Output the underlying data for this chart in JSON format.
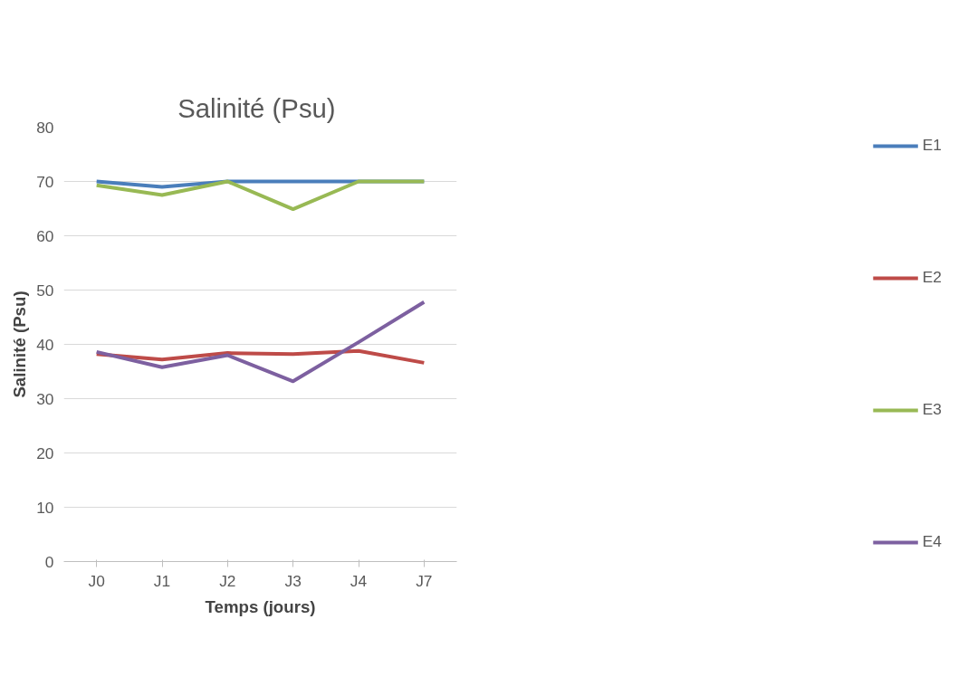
{
  "chart_data": {
    "type": "line",
    "title": "Salinité  (Psu)",
    "xlabel": "Temps (jours)",
    "ylabel": "Salinité (Psu)",
    "categories": [
      "J0",
      "J1",
      "J2",
      "J3",
      "J4",
      "J7"
    ],
    "series": [
      {
        "name": "E1",
        "color": "#4a7ebb",
        "values": [
          70,
          69,
          70,
          70,
          70,
          70
        ]
      },
      {
        "name": "E2",
        "color": "#be4b48",
        "values": [
          38.2,
          37.2,
          38.4,
          38.2,
          38.8,
          36.6
        ]
      },
      {
        "name": "E3",
        "color": "#98b954",
        "values": [
          69.3,
          67.5,
          70,
          64.9,
          70,
          70
        ]
      },
      {
        "name": "E4",
        "color": "#7d60a0",
        "values": [
          38.6,
          35.8,
          38,
          33.2,
          40.4,
          47.8
        ]
      }
    ],
    "ylim": [
      0,
      80
    ],
    "yticks": [
      0,
      10,
      20,
      30,
      40,
      50,
      60,
      70,
      80
    ],
    "grid": "y",
    "legend": "right",
    "marker": "none",
    "line_style": "solid"
  }
}
